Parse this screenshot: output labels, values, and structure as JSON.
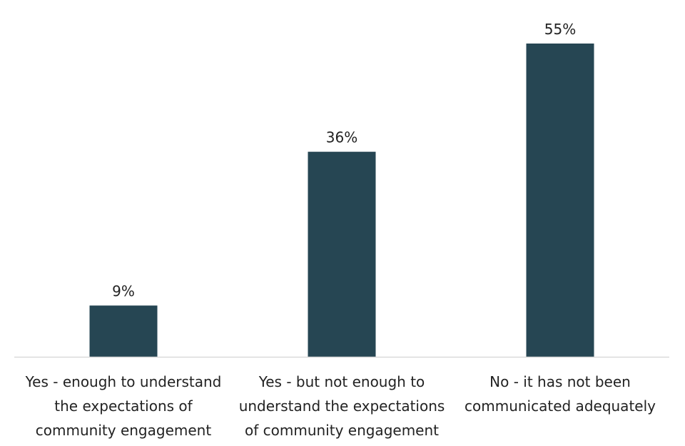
{
  "chart_data": {
    "type": "bar",
    "categories": [
      [
        "Yes - enough to understand",
        "the expectations of",
        "community engagement"
      ],
      [
        "Yes - but not enough to",
        "understand the expectations",
        "of community engagement"
      ],
      [
        "No - it has not been",
        "communicated adequately"
      ]
    ],
    "values": [
      9,
      36,
      55
    ],
    "data_labels": [
      "9%",
      "36%",
      "55%"
    ],
    "ylim": [
      0,
      55
    ],
    "grid": false,
    "legend": "none",
    "colors": {
      "bar": "#264653",
      "axis": "#d9d9d9",
      "text": "#222222"
    }
  }
}
